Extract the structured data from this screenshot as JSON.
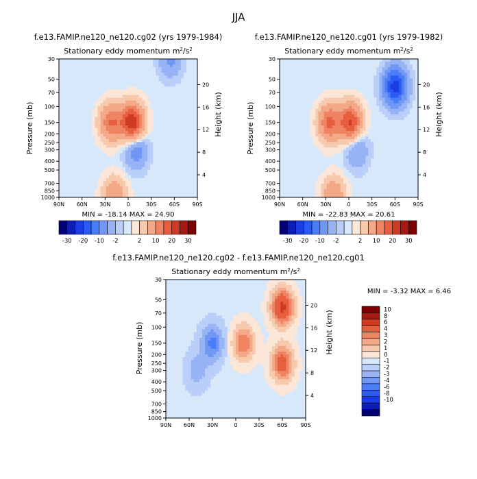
{
  "figure": {
    "season": "JJA"
  },
  "chart_data": [
    {
      "id": "top-left",
      "type": "contour",
      "title": "f.e13.FAMIP.ne120_ne120.cg02 (yrs 1979-1984)",
      "subtitle_base": "Stationary eddy momentum m",
      "subtitle_sup1": "2",
      "subtitle_mid": "/s",
      "subtitle_sup2": "2",
      "ylabel": "Pressure (mb)",
      "ylabel_right": "Height (km)",
      "x_ticks": [
        "90N",
        "60N",
        "30N",
        "0",
        "30S",
        "60S",
        "90S"
      ],
      "y_ticks": [
        "30",
        "50",
        "70",
        "100",
        "150",
        "200",
        "250",
        "300",
        "400",
        "500",
        "700",
        "850",
        "1000"
      ],
      "height_ticks": [
        "20",
        "16",
        "12",
        "8",
        "4"
      ],
      "stats": "MIN = -18.14   MAX =  24.90",
      "colorbar_labels": [
        "-30",
        "-20",
        "-10",
        "-2",
        "2",
        "10",
        "20",
        "30"
      ],
      "features": [
        {
          "lat": -5,
          "p": 150,
          "value": 24.9
        },
        {
          "lat": 22,
          "p": 150,
          "value": 15
        },
        {
          "lat": -10,
          "p": 300,
          "value": -8
        },
        {
          "lat": -55,
          "p": 30,
          "value": -6
        },
        {
          "lat": 18,
          "p": 970,
          "value": 10
        }
      ]
    },
    {
      "id": "top-right",
      "type": "contour",
      "title": "f.e13.FAMIP.ne120_ne120.cg01 (yrs 1979-1982)",
      "subtitle_base": "Stationary eddy momentum m",
      "subtitle_sup1": "2",
      "subtitle_mid": "/s",
      "subtitle_sup2": "2",
      "ylabel": "Pressure (mb)",
      "ylabel_right": "Height (km)",
      "x_ticks": [
        "90N",
        "60N",
        "30N",
        "0",
        "30S",
        "60S",
        "90S"
      ],
      "y_ticks": [
        "30",
        "50",
        "70",
        "100",
        "150",
        "200",
        "250",
        "300",
        "400",
        "500",
        "700",
        "850",
        "1000"
      ],
      "height_ticks": [
        "20",
        "16",
        "12",
        "8",
        "4"
      ],
      "stats": "MIN = -22.83   MAX =  20.61",
      "colorbar_labels": [
        "-30",
        "-20",
        "-10",
        "-2",
        "2",
        "10",
        "20",
        "30"
      ],
      "features": [
        {
          "lat": -2,
          "p": 150,
          "value": 20.6
        },
        {
          "lat": 25,
          "p": 150,
          "value": 16
        },
        {
          "lat": -60,
          "p": 60,
          "value": -22.8
        },
        {
          "lat": -10,
          "p": 300,
          "value": -6
        },
        {
          "lat": 20,
          "p": 970,
          "value": 10
        }
      ]
    },
    {
      "id": "bottom",
      "type": "contour",
      "title": "f.e13.FAMIP.ne120_ne120.cg02 - f.e13.FAMIP.ne120_ne120.cg01",
      "subtitle_base": "Stationary eddy momentum m",
      "subtitle_sup1": "2",
      "subtitle_mid": "/s",
      "subtitle_sup2": "2",
      "ylabel": "Pressure (mb)",
      "ylabel_right": "Height (km)",
      "x_ticks": [
        "90N",
        "60N",
        "30N",
        "0",
        "30S",
        "60S",
        "90S"
      ],
      "y_ticks": [
        "30",
        "50",
        "70",
        "100",
        "150",
        "200",
        "250",
        "300",
        "400",
        "500",
        "700",
        "850",
        "1000"
      ],
      "height_ticks": [
        "20",
        "16",
        "12",
        "8",
        "4"
      ],
      "stats": "MIN =   -3.32   MAX =    6.46",
      "colorbar_labels": [
        "10",
        "8",
        "6",
        "4",
        "3",
        "2",
        "1",
        "0",
        "-1",
        "-2",
        "-3",
        "-4",
        "-6",
        "-8",
        "-10"
      ],
      "features": [
        {
          "lat": -60,
          "p": 60,
          "value": 6.46
        },
        {
          "lat": -60,
          "p": 250,
          "value": 5
        },
        {
          "lat": -10,
          "p": 150,
          "value": 4
        },
        {
          "lat": 30,
          "p": 150,
          "value": -3.32
        },
        {
          "lat": 50,
          "p": 300,
          "value": -1.5
        }
      ]
    }
  ],
  "colorbar_colors": [
    "#030073",
    "#0c1fb4",
    "#1a3ce0",
    "#2c5af5",
    "#4a7df8",
    "#7197f5",
    "#97b3f5",
    "#b9cef8",
    "#d8e8fb",
    "#fbe6d8",
    "#f7c9ad",
    "#f3a888",
    "#ef8463",
    "#e75f3e",
    "#cf3a22",
    "#a81912",
    "#7b0000"
  ],
  "diff_colors": [
    "#030073",
    "#0c1fb4",
    "#1a3ce0",
    "#2c5af5",
    "#4a7df8",
    "#7197f5",
    "#97b3f5",
    "#b9cef8",
    "#d8e8fb",
    "#fbe6d8",
    "#f7c9ad",
    "#f3a888",
    "#ef8463",
    "#e75f3e",
    "#cf3a22",
    "#a81912",
    "#7b0000"
  ]
}
